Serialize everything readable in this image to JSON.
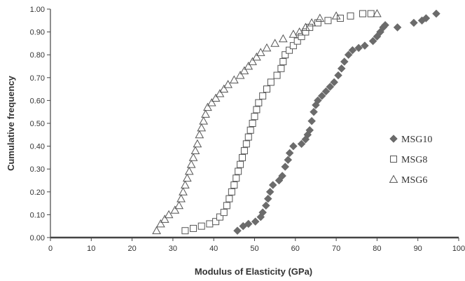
{
  "chart_data": {
    "type": "scatter",
    "xlabel": "Modulus of Elasticity (GPa)",
    "ylabel": "Cumulative frequency",
    "xlim": [
      0,
      100
    ],
    "ylim": [
      0,
      1
    ],
    "x_ticks": [
      "0",
      "10",
      "20",
      "30",
      "40",
      "50",
      "60",
      "70",
      "80",
      "90",
      "100"
    ],
    "y_ticks": [
      "0.00",
      "0.10",
      "0.20",
      "0.30",
      "0.40",
      "0.50",
      "0.60",
      "0.70",
      "0.80",
      "0.90",
      "1.00"
    ],
    "grid": false,
    "legend_position": "right",
    "series": [
      {
        "name": "MSG10",
        "marker": "diamond",
        "color": "#6b6b6b",
        "points": [
          [
            45.8,
            0.03
          ],
          [
            47.2,
            0.05
          ],
          [
            48.5,
            0.06
          ],
          [
            50.2,
            0.07
          ],
          [
            51.5,
            0.09
          ],
          [
            52.0,
            0.11
          ],
          [
            52.8,
            0.14
          ],
          [
            53.3,
            0.17
          ],
          [
            53.8,
            0.2
          ],
          [
            54.5,
            0.23
          ],
          [
            56.0,
            0.25
          ],
          [
            56.8,
            0.27
          ],
          [
            57.5,
            0.31
          ],
          [
            58.2,
            0.34
          ],
          [
            58.6,
            0.37
          ],
          [
            59.5,
            0.4
          ],
          [
            61.5,
            0.41
          ],
          [
            62.5,
            0.43
          ],
          [
            63.0,
            0.45
          ],
          [
            63.5,
            0.47
          ],
          [
            64.0,
            0.51
          ],
          [
            64.5,
            0.55
          ],
          [
            65.0,
            0.58
          ],
          [
            65.5,
            0.6
          ],
          [
            66.5,
            0.62
          ],
          [
            67.5,
            0.64
          ],
          [
            68.5,
            0.66
          ],
          [
            69.5,
            0.68
          ],
          [
            70.5,
            0.71
          ],
          [
            71.3,
            0.74
          ],
          [
            72.0,
            0.77
          ],
          [
            73.0,
            0.8
          ],
          [
            74.0,
            0.82
          ],
          [
            75.5,
            0.83
          ],
          [
            77.0,
            0.84
          ],
          [
            79.0,
            0.86
          ],
          [
            80.0,
            0.88
          ],
          [
            80.8,
            0.9
          ],
          [
            81.5,
            0.92
          ],
          [
            82.0,
            0.93
          ],
          [
            85.0,
            0.92
          ],
          [
            89.0,
            0.94
          ],
          [
            91.0,
            0.95
          ],
          [
            92.0,
            0.96
          ],
          [
            94.5,
            0.98
          ]
        ]
      },
      {
        "name": "MSG8",
        "marker": "square",
        "color": "#555555",
        "points": [
          [
            33.0,
            0.03
          ],
          [
            35.0,
            0.04
          ],
          [
            37.0,
            0.05
          ],
          [
            39.0,
            0.06
          ],
          [
            40.5,
            0.07
          ],
          [
            41.5,
            0.09
          ],
          [
            42.5,
            0.11
          ],
          [
            43.2,
            0.14
          ],
          [
            43.8,
            0.17
          ],
          [
            44.4,
            0.2
          ],
          [
            45.0,
            0.23
          ],
          [
            45.5,
            0.26
          ],
          [
            46.0,
            0.29
          ],
          [
            46.5,
            0.32
          ],
          [
            47.0,
            0.35
          ],
          [
            47.5,
            0.38
          ],
          [
            48.0,
            0.41
          ],
          [
            48.5,
            0.44
          ],
          [
            49.0,
            0.47
          ],
          [
            49.5,
            0.5
          ],
          [
            50.0,
            0.53
          ],
          [
            50.5,
            0.56
          ],
          [
            51.0,
            0.59
          ],
          [
            52.0,
            0.62
          ],
          [
            53.0,
            0.65
          ],
          [
            54.0,
            0.68
          ],
          [
            55.5,
            0.71
          ],
          [
            56.5,
            0.74
          ],
          [
            57.0,
            0.77
          ],
          [
            57.5,
            0.8
          ],
          [
            58.5,
            0.82
          ],
          [
            59.5,
            0.84
          ],
          [
            60.5,
            0.86
          ],
          [
            61.5,
            0.88
          ],
          [
            62.5,
            0.9
          ],
          [
            63.5,
            0.92
          ],
          [
            65.5,
            0.94
          ],
          [
            68.0,
            0.95
          ],
          [
            71.0,
            0.96
          ],
          [
            73.5,
            0.97
          ],
          [
            76.5,
            0.98
          ],
          [
            78.5,
            0.98
          ]
        ]
      },
      {
        "name": "MSG6",
        "marker": "triangle",
        "color": "#555555",
        "points": [
          [
            26.0,
            0.03
          ],
          [
            27.0,
            0.06
          ],
          [
            28.0,
            0.08
          ],
          [
            29.0,
            0.1
          ],
          [
            30.5,
            0.12
          ],
          [
            31.5,
            0.14
          ],
          [
            32.0,
            0.17
          ],
          [
            32.5,
            0.2
          ],
          [
            33.0,
            0.23
          ],
          [
            33.5,
            0.26
          ],
          [
            34.0,
            0.29
          ],
          [
            34.5,
            0.32
          ],
          [
            35.0,
            0.35
          ],
          [
            35.5,
            0.38
          ],
          [
            36.0,
            0.41
          ],
          [
            36.5,
            0.45
          ],
          [
            37.0,
            0.48
          ],
          [
            37.5,
            0.51
          ],
          [
            38.0,
            0.54
          ],
          [
            38.5,
            0.57
          ],
          [
            39.5,
            0.59
          ],
          [
            40.5,
            0.61
          ],
          [
            41.5,
            0.63
          ],
          [
            42.5,
            0.65
          ],
          [
            43.5,
            0.67
          ],
          [
            45.0,
            0.69
          ],
          [
            46.5,
            0.71
          ],
          [
            47.5,
            0.73
          ],
          [
            48.5,
            0.75
          ],
          [
            49.5,
            0.77
          ],
          [
            50.5,
            0.79
          ],
          [
            51.5,
            0.81
          ],
          [
            53.0,
            0.83
          ],
          [
            55.0,
            0.85
          ],
          [
            57.0,
            0.87
          ],
          [
            59.5,
            0.89
          ],
          [
            61.0,
            0.9
          ],
          [
            62.5,
            0.92
          ],
          [
            64.0,
            0.94
          ],
          [
            66.0,
            0.96
          ],
          [
            70.0,
            0.97
          ],
          [
            80.0,
            0.98
          ]
        ]
      }
    ]
  }
}
